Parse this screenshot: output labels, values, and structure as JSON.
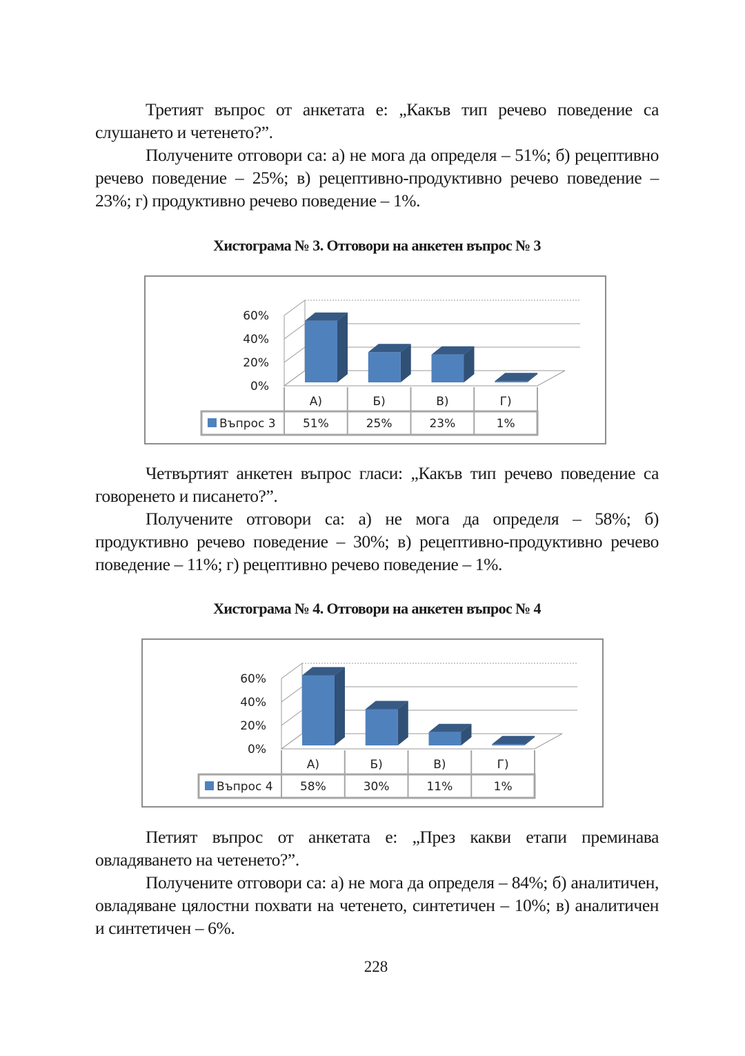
{
  "section3": {
    "paragraphs": [
      "Третият въпрос от анкетата е: „Какъв тип речево поведение са слушането и четенето?”.",
      "Получените отговори са: а) не мога да определя – 51%; б) рецептивно речево поведение – 25%; в) рецептивно-продуктивно речево поведение – 23%; г) продуктивно речево поведение –  1%."
    ],
    "caption": "Хистограма № 3. Отговори на анкетен въпрос № 3"
  },
  "section4": {
    "paragraphs": [
      "Четвъртият анкетен въпрос гласи: „Какъв тип речево поведение са говоренето и писането?”.",
      "Получените отговори са: а) не мога да определя – 58%; б) продуктивно речево поведение – 30%; в) рецептивно-продуктивно речево поведение – 11%; г) рецептивно речево поведение – 1%."
    ],
    "caption": "Хистограма № 4. Отговори на анкетен въпрос № 4"
  },
  "section5": {
    "paragraphs": [
      "Петият въпрос от анкетата е: „През какви етапи преминава овладяването на четенето?”.",
      "Получените отговори са: а) не мога да определя – 84%; б) аналитичен, овладяване цялостни похвати на четенето, синтетичен – 10%; в) аналитичен и синтетичен – 6%."
    ]
  },
  "page_number": "228",
  "chart_data": [
    {
      "type": "bar",
      "style": "3d-column with data table",
      "categories": [
        "А)",
        "Б)",
        "В)",
        "Г)"
      ],
      "series": [
        {
          "name": "Въпрос 3",
          "values": [
            51,
            25,
            23,
            1
          ],
          "labels": [
            "51%",
            "25%",
            "23%",
            "1%"
          ],
          "color": "#4f81bd"
        }
      ],
      "yticks": [
        "0%",
        "20%",
        "40%",
        "60%"
      ],
      "ylim": [
        0,
        60
      ],
      "grid": true,
      "legend": "data-table-left"
    },
    {
      "type": "bar",
      "style": "3d-column with data table",
      "categories": [
        "А)",
        "Б)",
        "В)",
        "Г)"
      ],
      "series": [
        {
          "name": "Въпрос 4",
          "values": [
            58,
            30,
            11,
            1
          ],
          "labels": [
            "58%",
            "30%",
            "11%",
            "1%"
          ],
          "color": "#4f81bd"
        }
      ],
      "yticks": [
        "0%",
        "20%",
        "40%",
        "60%"
      ],
      "ylim": [
        0,
        60
      ],
      "grid": true,
      "legend": "data-table-left"
    }
  ]
}
